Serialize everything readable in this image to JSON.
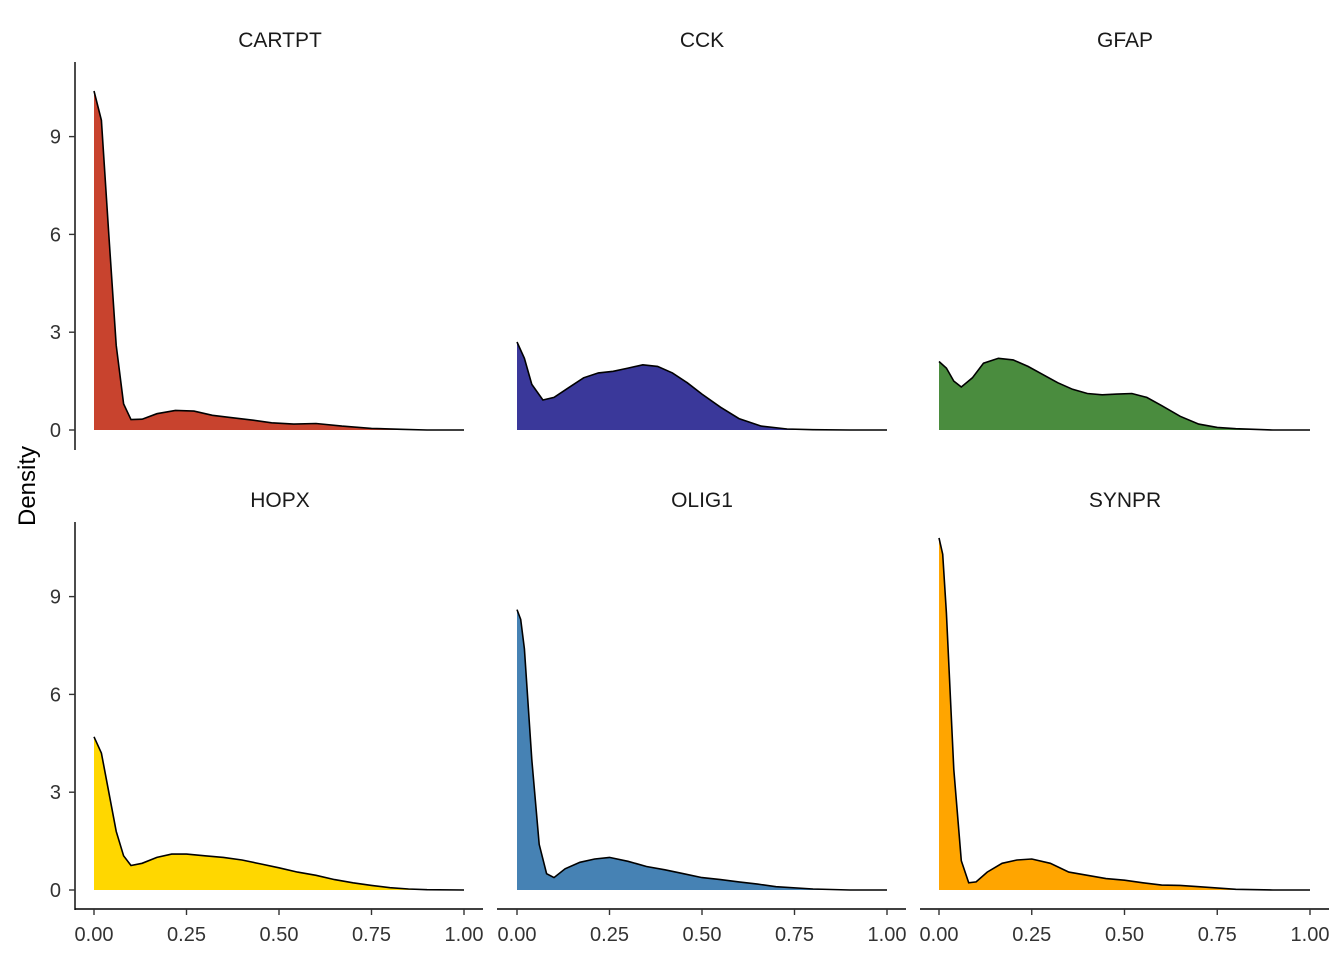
{
  "chart_data": {
    "type": "area",
    "ylabel": "Density",
    "xlabel": "",
    "xlim": [
      0,
      1
    ],
    "ylim": [
      0,
      11
    ],
    "xticks": [
      "0.00",
      "0.25",
      "0.50",
      "0.75",
      "1.00"
    ],
    "yticks": [
      "0",
      "3",
      "6",
      "9"
    ],
    "grid": false,
    "facets": [
      {
        "name": "CARTPT",
        "color": "#C8432E",
        "x": [
          0.0,
          0.02,
          0.04,
          0.06,
          0.08,
          0.1,
          0.13,
          0.17,
          0.22,
          0.27,
          0.32,
          0.37,
          0.43,
          0.48,
          0.54,
          0.6,
          0.67,
          0.75,
          0.83,
          0.9,
          1.0
        ],
        "y": [
          10.4,
          9.5,
          6.0,
          2.6,
          0.8,
          0.32,
          0.33,
          0.5,
          0.6,
          0.58,
          0.45,
          0.38,
          0.3,
          0.22,
          0.18,
          0.2,
          0.12,
          0.05,
          0.02,
          0.0,
          0.0
        ]
      },
      {
        "name": "CCK",
        "color": "#3A389A",
        "x": [
          0.0,
          0.02,
          0.04,
          0.07,
          0.1,
          0.14,
          0.18,
          0.22,
          0.26,
          0.3,
          0.34,
          0.38,
          0.42,
          0.46,
          0.5,
          0.55,
          0.6,
          0.66,
          0.73,
          0.8,
          0.9,
          1.0
        ],
        "y": [
          2.7,
          2.2,
          1.4,
          0.92,
          1.0,
          1.3,
          1.6,
          1.75,
          1.8,
          1.9,
          2.0,
          1.95,
          1.75,
          1.45,
          1.1,
          0.7,
          0.35,
          0.12,
          0.03,
          0.01,
          0.0,
          0.0
        ]
      },
      {
        "name": "GFAP",
        "color": "#4A8C3E",
        "x": [
          0.0,
          0.02,
          0.04,
          0.06,
          0.09,
          0.12,
          0.16,
          0.2,
          0.24,
          0.28,
          0.32,
          0.36,
          0.4,
          0.44,
          0.48,
          0.52,
          0.56,
          0.6,
          0.65,
          0.7,
          0.75,
          0.8,
          0.9,
          1.0
        ],
        "y": [
          2.1,
          1.9,
          1.5,
          1.32,
          1.6,
          2.05,
          2.2,
          2.15,
          1.95,
          1.7,
          1.45,
          1.25,
          1.12,
          1.08,
          1.1,
          1.12,
          1.0,
          0.75,
          0.42,
          0.18,
          0.08,
          0.04,
          0.0,
          0.0
        ]
      },
      {
        "name": "HOPX",
        "color": "#FFD700",
        "x": [
          0.0,
          0.02,
          0.04,
          0.06,
          0.08,
          0.1,
          0.13,
          0.17,
          0.21,
          0.25,
          0.3,
          0.35,
          0.4,
          0.45,
          0.5,
          0.55,
          0.6,
          0.65,
          0.7,
          0.75,
          0.8,
          0.85,
          0.9,
          1.0
        ],
        "y": [
          4.7,
          4.2,
          3.0,
          1.8,
          1.05,
          0.75,
          0.82,
          1.0,
          1.1,
          1.1,
          1.05,
          1.0,
          0.92,
          0.8,
          0.68,
          0.55,
          0.45,
          0.32,
          0.22,
          0.14,
          0.07,
          0.03,
          0.01,
          0.0
        ]
      },
      {
        "name": "OLIG1",
        "color": "#4682B4",
        "x": [
          0.0,
          0.01,
          0.02,
          0.04,
          0.06,
          0.08,
          0.1,
          0.13,
          0.17,
          0.21,
          0.25,
          0.3,
          0.35,
          0.4,
          0.45,
          0.5,
          0.55,
          0.6,
          0.65,
          0.7,
          0.8,
          0.9,
          1.0
        ],
        "y": [
          8.6,
          8.3,
          7.4,
          4.0,
          1.4,
          0.5,
          0.38,
          0.65,
          0.85,
          0.95,
          1.0,
          0.88,
          0.72,
          0.62,
          0.5,
          0.38,
          0.32,
          0.25,
          0.18,
          0.1,
          0.03,
          0.0,
          0.0
        ]
      },
      {
        "name": "SYNPR",
        "color": "#FFA500",
        "x": [
          0.0,
          0.01,
          0.02,
          0.04,
          0.06,
          0.08,
          0.1,
          0.13,
          0.17,
          0.21,
          0.25,
          0.3,
          0.35,
          0.4,
          0.45,
          0.5,
          0.55,
          0.6,
          0.65,
          0.7,
          0.8,
          0.9,
          1.0
        ],
        "y": [
          10.8,
          10.3,
          8.5,
          3.7,
          0.9,
          0.22,
          0.25,
          0.55,
          0.82,
          0.92,
          0.95,
          0.82,
          0.55,
          0.45,
          0.35,
          0.3,
          0.22,
          0.15,
          0.14,
          0.1,
          0.02,
          0.0,
          0.0
        ]
      }
    ]
  }
}
